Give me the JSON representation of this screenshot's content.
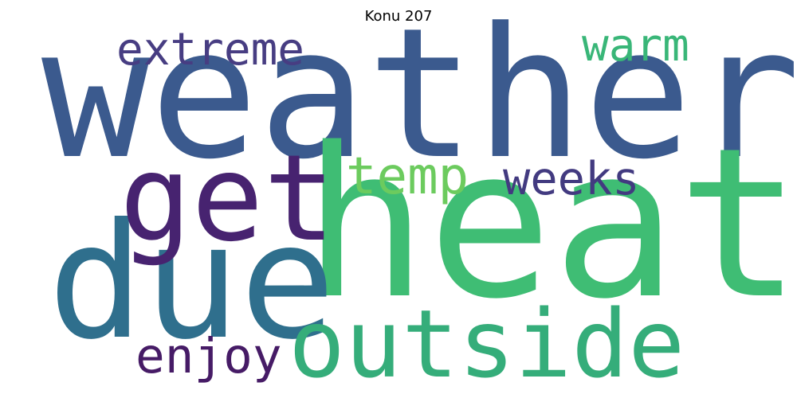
{
  "title": "Konu 207",
  "words": {
    "weather": {
      "text": "weather",
      "color": "#3b5a8e"
    },
    "heat": {
      "text": "heat",
      "color": "#3fbd74"
    },
    "due": {
      "text": "due",
      "color": "#2f6f8d"
    },
    "outside": {
      "text": "outside",
      "color": "#35ad7a"
    },
    "get": {
      "text": "get",
      "color": "#472370"
    },
    "extreme": {
      "text": "extreme",
      "color": "#473d82"
    },
    "warm": {
      "text": "warm",
      "color": "#39b678"
    },
    "temp": {
      "text": "temp",
      "color": "#6ccb5e"
    },
    "weeks": {
      "text": "weeks",
      "color": "#423a80"
    },
    "enjoy": {
      "text": "enjoy",
      "color": "#461b66"
    }
  }
}
